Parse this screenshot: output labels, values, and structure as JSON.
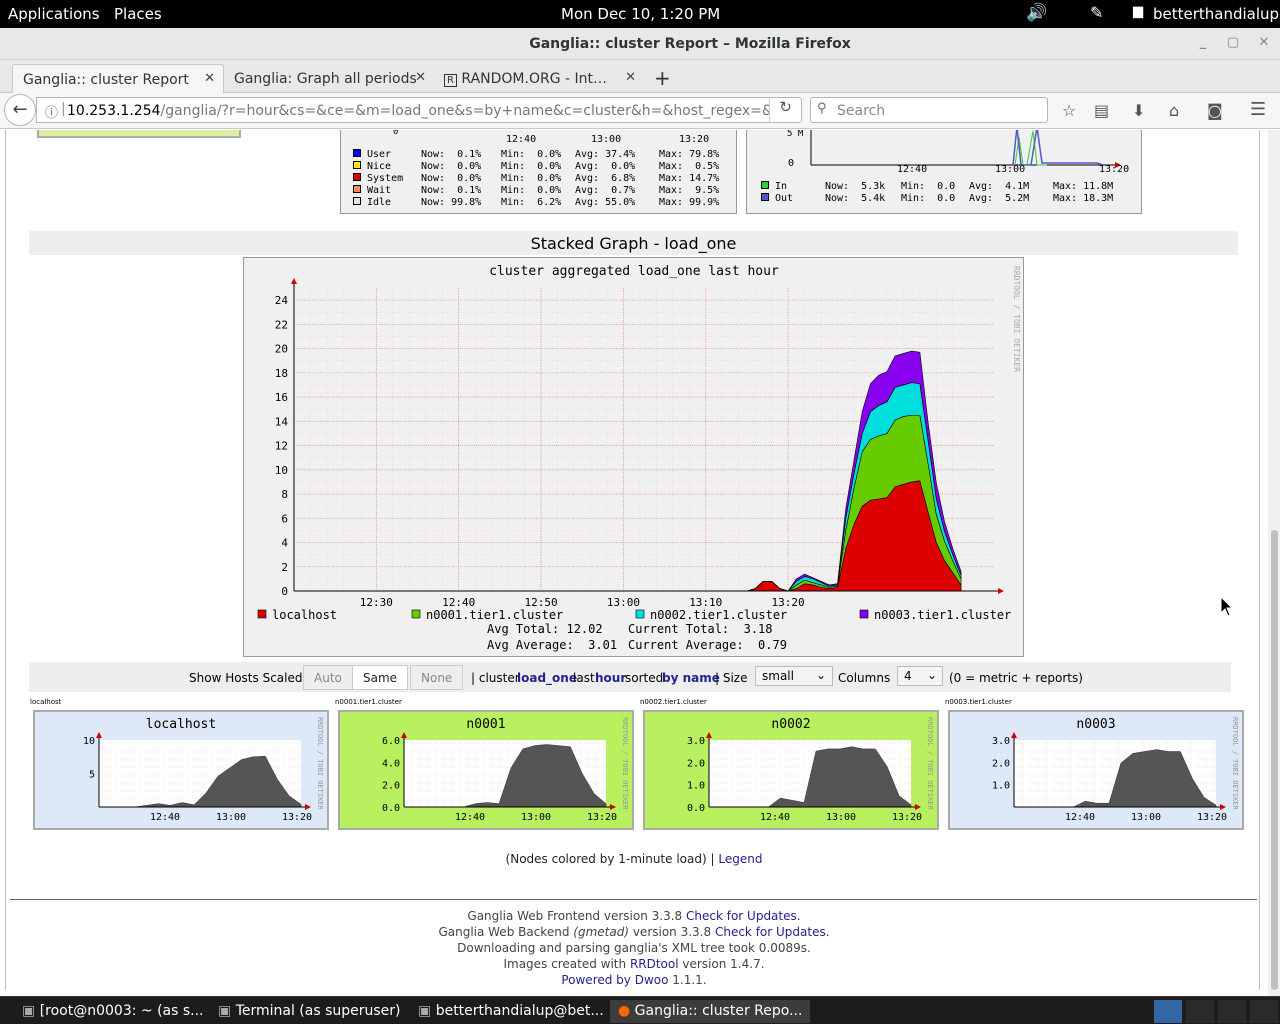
{
  "system_bar": {
    "applications": "Applications",
    "places": "Places",
    "clock": "Mon Dec 10,  1:20 PM",
    "user": "betterthandialup"
  },
  "window": {
    "title": "Ganglia:: cluster Report – Mozilla Firefox"
  },
  "tabs": [
    {
      "label": "Ganglia:: cluster Report"
    },
    {
      "label": "Ganglia: Graph all periods"
    },
    {
      "label": "RANDOM.ORG - Int…"
    }
  ],
  "url": {
    "host": "10.253.1.254",
    "path": "/ganglia/?r=hour&cs=&ce=&m=load_one&s=by+name&c=cluster&h=&host_regex=&ma"
  },
  "search": {
    "placeholder": "Search"
  },
  "cpu_legend": {
    "axis_ticks": [
      "12:40",
      "13:00",
      "13:20"
    ],
    "rows": [
      {
        "name": "User",
        "color": "#0000ff",
        "now": "Now:  0.1%",
        "min": "Min:  0.0%",
        "avg": "Avg: 37.4%",
        "max": "Max: 79.8%"
      },
      {
        "name": "Nice",
        "color": "#ffea00",
        "now": "Now:  0.0%",
        "min": "Min:  0.0%",
        "avg": "Avg:  0.0%",
        "max": "Max:  0.5%"
      },
      {
        "name": "System",
        "color": "#dd0000",
        "now": "Now:  0.0%",
        "min": "Min:  0.0%",
        "avg": "Avg:  6.8%",
        "max": "Max: 14.7%"
      },
      {
        "name": "Wait",
        "color": "#ff8a60",
        "now": "Now:  0.1%",
        "min": "Min:  0.0%",
        "avg": "Avg:  0.7%",
        "max": "Max:  9.5%"
      },
      {
        "name": "Idle",
        "color": "#e2e2f2",
        "now": "Now: 99.8%",
        "min": "Min:  6.2%",
        "avg": "Avg: 55.0%",
        "max": "Max: 99.9%"
      }
    ]
  },
  "net_legend": {
    "y_ticks": [
      "5 M",
      "0"
    ],
    "axis_ticks": [
      "12:40",
      "13:00",
      "13:20"
    ],
    "rows": [
      {
        "name": "In",
        "color": "#33cc33",
        "now": "Now:  5.3k",
        "min": "Min:  0.0",
        "avg": "Avg:  4.1M",
        "max": "Max: 11.8M"
      },
      {
        "name": "Out",
        "color": "#5555cc",
        "now": "Now:  5.4k",
        "min": "Min:  0.0",
        "avg": "Avg:  5.2M",
        "max": "Max: 18.3M"
      }
    ]
  },
  "stacked": {
    "section_title": "Stacked Graph - load_one",
    "watermark": "RRDTOOL / TOBI OETIKER",
    "avg_total": "Avg Total: 12.02",
    "current_total": "Current Total:  3.18",
    "avg_average": "Avg Average:  3.01",
    "current_average": "Current Average:  0.79"
  },
  "chart_data": {
    "type": "area",
    "title": "cluster aggregated load_one last hour",
    "xlabel": "",
    "ylabel": "",
    "x_ticks": [
      "12:30",
      "12:40",
      "12:50",
      "13:00",
      "13:10",
      "13:20"
    ],
    "y_ticks": [
      0,
      2,
      4,
      6,
      8,
      10,
      12,
      14,
      16,
      18,
      20,
      22,
      24
    ],
    "ylim": [
      0,
      25
    ],
    "stacked": true,
    "x": [
      55,
      56,
      57,
      58,
      59,
      60,
      61,
      62,
      63,
      64,
      65,
      66,
      67,
      68,
      69,
      70,
      71,
      72,
      73,
      74,
      75,
      76,
      77,
      78,
      79,
      80,
      81
    ],
    "series": [
      {
        "name": "localhost",
        "color": "#dd0000",
        "values": [
          0,
          0.2,
          0.8,
          0.8,
          0.2,
          0,
          0.2,
          0.6,
          0.5,
          0.3,
          0.2,
          0.3,
          3.5,
          5.5,
          7.0,
          7.5,
          7.6,
          7.7,
          8.6,
          8.8,
          9.0,
          9.1,
          6.5,
          4.0,
          2.5,
          1.5,
          0.5
        ]
      },
      {
        "name": "n0001.tier1.cluster",
        "color": "#66cc00",
        "values": [
          0,
          0,
          0,
          0,
          0,
          0,
          0.3,
          0.3,
          0.2,
          0.2,
          0.1,
          0.1,
          1.5,
          3.0,
          4.5,
          5.0,
          5.2,
          5.3,
          5.5,
          5.6,
          5.5,
          5.4,
          4.0,
          2.3,
          1.6,
          1.0,
          0.5
        ]
      },
      {
        "name": "n0002.tier1.cluster",
        "color": "#00dddd",
        "values": [
          0,
          0,
          0,
          0,
          0,
          0,
          0.3,
          0.3,
          0.3,
          0.2,
          0.1,
          0.1,
          1.0,
          1.2,
          1.5,
          2.3,
          2.5,
          2.6,
          2.7,
          2.6,
          2.7,
          2.6,
          1.9,
          1.3,
          0.8,
          0.5,
          0.3
        ]
      },
      {
        "name": "n0003.tier1.cluster",
        "color": "#8800ee",
        "values": [
          0,
          0,
          0,
          0,
          0,
          0,
          0.2,
          0.2,
          0.1,
          0.1,
          0.1,
          0.1,
          0.8,
          1.1,
          1.8,
          2.3,
          2.5,
          2.5,
          2.6,
          2.6,
          2.6,
          2.6,
          1.5,
          1.3,
          0.8,
          0.5,
          0.3
        ]
      }
    ]
  },
  "controls": {
    "show_hosts_scaled": "Show Hosts Scaled:",
    "auto": "Auto",
    "same": "Same",
    "none": "None",
    "sep1": "| cluster",
    "metric": "load_one",
    "last": "last",
    "period": "hour",
    "sorted": "sorted",
    "sort": "by name",
    "size_label": "| Size",
    "size_value": "small",
    "columns_label": "Columns",
    "columns_value": "4",
    "note": "(0 = metric + reports)"
  },
  "hosts": [
    {
      "label": "localhost",
      "title": "localhost",
      "bg": "#dde8f8",
      "y_ticks": [
        "10",
        "5"
      ],
      "ymax": 12,
      "values": [
        0,
        0,
        0,
        0,
        0.3,
        0.6,
        0.3,
        0.8,
        0.4,
        2.5,
        5.5,
        7.0,
        8.5,
        9.0,
        9.1,
        5.0,
        2.0,
        0.5
      ]
    },
    {
      "label": "n0001.tier1.cluster",
      "title": "n0001",
      "bg": "#b8f060",
      "y_ticks": [
        "6.0",
        "4.0",
        "2.0",
        "0.0"
      ],
      "ymax": 6,
      "values": [
        0,
        0,
        0,
        0,
        0,
        0,
        0.3,
        0.4,
        0.3,
        3.5,
        5.2,
        5.5,
        5.6,
        5.5,
        5.4,
        3.0,
        1.2,
        0.3
      ]
    },
    {
      "label": "n0002.tier1.cluster",
      "title": "n0002",
      "bg": "#b8f060",
      "y_ticks": [
        "3.0",
        "2.0",
        "1.0",
        "0.0"
      ],
      "ymax": 3,
      "values": [
        0,
        0,
        0,
        0,
        0,
        0,
        0.4,
        0.3,
        0.2,
        2.5,
        2.6,
        2.6,
        2.7,
        2.6,
        2.6,
        1.8,
        0.5,
        0.1
      ]
    },
    {
      "label": "n0003.tier1.cluster",
      "title": "n0003",
      "bg": "#dde8f8",
      "y_ticks": [
        "3.0",
        "2.0",
        "1.0"
      ],
      "ymax": 3.5,
      "values": [
        0,
        0,
        0,
        0,
        0,
        0,
        0.3,
        0.2,
        0.2,
        2.3,
        2.8,
        2.9,
        3.0,
        2.9,
        2.9,
        1.5,
        0.5,
        0.1
      ]
    }
  ],
  "host_x_ticks": [
    "12:40",
    "13:00",
    "13:20"
  ],
  "nodes_note": "(Nodes colored by 1-minute load) |",
  "legend_link": "Legend",
  "footer": {
    "l1": "Ganglia Web Frontend version 3.3.8",
    "l1_link": "Check for Updates.",
    "l2a": "Ganglia Web Backend",
    "l2b": "(gmetad)",
    "l2c": "version 3.3.8",
    "l2_link": "Check for Updates.",
    "l3": "Downloading and parsing ganglia's XML tree took 0.0089s.",
    "l4a": "Images created with",
    "l4_link": "RRDtool",
    "l4b": "version 1.4.7.",
    "l5_link": "Powered by Dwoo",
    "l5b": "1.1.1."
  },
  "taskbar": [
    {
      "label": "[root@n0003: ~ (as s..."
    },
    {
      "label": "Terminal (as superuser)"
    },
    {
      "label": "betterthandialup@bet..."
    },
    {
      "label": "Ganglia:: cluster Repo..."
    }
  ]
}
